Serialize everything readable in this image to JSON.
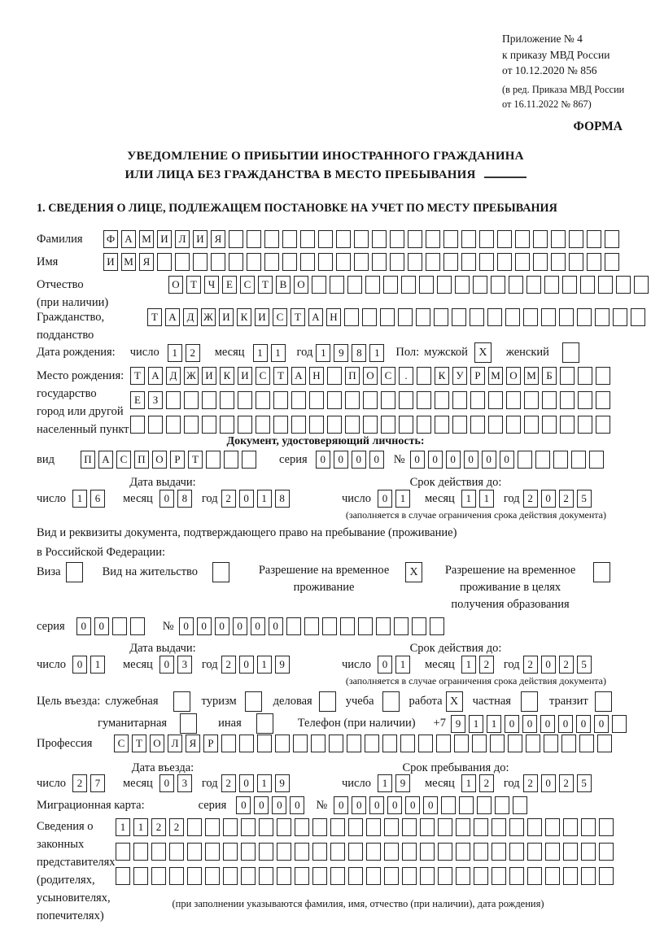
{
  "header": {
    "reference_lines": [
      "Приложение № 4",
      "к приказу МВД России",
      "от 10.12.2020 № 856"
    ],
    "amendment_lines": [
      "(в ред. Приказа МВД России",
      "от 16.11.2022 № 867)"
    ],
    "form_label": "ФОРМА"
  },
  "title": {
    "line1": "УВЕДОМЛЕНИЕ О ПРИБЫТИИ ИНОСТРАННОГО ГРАЖДАНИНА",
    "line2": "ИЛИ ЛИЦА БЕЗ ГРАЖДАНСТВА В МЕСТО ПРЕБЫВАНИЯ"
  },
  "section1_heading": "1. СВЕДЕНИЯ О ЛИЦЕ, ПОДЛЕЖАЩЕМ ПОСТАНОВКЕ НА УЧЕТ ПО МЕСТУ ПРЕБЫВАНИЯ",
  "labels": {
    "vid": "вид",
    "seriya": "серия",
    "number_sign": "№",
    "chislo": "число",
    "mesyats": "месяц",
    "god": "год",
    "data_vydachi": "Дата выдачи:",
    "srok_deystviya": "Срок действия до:",
    "validity_note": "(заполняется в случае ограничения срока действия документа)"
  },
  "surname": {
    "label": "Фамилия",
    "cells": {
      "chars": "ФАМИЛИЯ",
      "count": 29
    }
  },
  "name": {
    "label": "Имя",
    "cells": {
      "chars": "ИМЯ",
      "count": 29
    }
  },
  "patronymic": {
    "label": "Отчество",
    "label2": "(при наличии)",
    "cells": {
      "chars": "ОТЧЕСТВО",
      "count": 27
    }
  },
  "citizenship": {
    "label": "Гражданство,",
    "label2": "подданство",
    "cells": {
      "chars": "ТАДЖИКИСТАН",
      "count": 28
    }
  },
  "birth_date": {
    "label": "Дата рождения:",
    "day": {
      "chars": "12",
      "count": 2
    },
    "month": {
      "chars": "11",
      "count": 2
    },
    "year": {
      "chars": "1981",
      "count": 4
    },
    "sex_label": "Пол:",
    "male_label": "мужской",
    "male_box": {
      "chars": "X",
      "count": 1
    },
    "female_label": "женский",
    "female_box": {
      "chars": "",
      "count": 1
    }
  },
  "birth_place": {
    "label_lines": [
      "Место рождения:",
      "государство",
      "город или другой",
      "населенный пункт"
    ],
    "row1": {
      "chars": "ТАДЖИКИСТАН ПОС. КУРМОМБ",
      "count": 27
    },
    "row2": {
      "chars": "ЕЗ",
      "count": 27
    },
    "row3": {
      "chars": "",
      "count": 27
    }
  },
  "identity_doc": {
    "heading": "Документ, удостоверяющий личность:",
    "vid_cells": {
      "chars": "ПАСПОРТ",
      "count": 10
    },
    "seriya_cells": {
      "chars": "0000",
      "count": 4
    },
    "number_cells": {
      "chars": "000000",
      "count": 11
    },
    "issue": {
      "day": {
        "chars": "16",
        "count": 2
      },
      "month": {
        "chars": "08",
        "count": 2
      },
      "year": {
        "chars": "2018",
        "count": 4
      }
    },
    "valid": {
      "day": {
        "chars": "01",
        "count": 2
      },
      "month": {
        "chars": "11",
        "count": 2
      },
      "year": {
        "chars": "2025",
        "count": 4
      }
    }
  },
  "residence_doc": {
    "line1": "Вид и реквизиты документа, подтверждающего право на пребывание (проживание)",
    "line2": "в Российской Федерации:",
    "options": [
      {
        "label": "Виза",
        "box": {
          "chars": "",
          "count": 1
        }
      },
      {
        "label": "Вид на жительство",
        "box": {
          "chars": "",
          "count": 1
        }
      },
      {
        "lines": [
          "Разрешение на временное",
          "проживание"
        ],
        "box": {
          "chars": "X",
          "count": 1
        }
      },
      {
        "lines": [
          "Разрешение на временное",
          "проживание в целях",
          "получения образования"
        ],
        "box": {
          "chars": "",
          "count": 1
        }
      }
    ],
    "seriya_cells": {
      "chars": "00",
      "count": 4
    },
    "number_cells": {
      "chars": "000000",
      "count": 15
    },
    "issue": {
      "day": {
        "chars": "01",
        "count": 2
      },
      "month": {
        "chars": "03",
        "count": 2
      },
      "year": {
        "chars": "2019",
        "count": 4
      }
    },
    "valid": {
      "day": {
        "chars": "01",
        "count": 2
      },
      "month": {
        "chars": "12",
        "count": 2
      },
      "year": {
        "chars": "2025",
        "count": 4
      }
    }
  },
  "visit_purpose": {
    "label": "Цель въезда:",
    "options": [
      {
        "label": "служебная",
        "box": {
          "chars": "",
          "count": 1
        }
      },
      {
        "label": "туризм",
        "box": {
          "chars": "",
          "count": 1
        }
      },
      {
        "label": "деловая",
        "box": {
          "chars": "",
          "count": 1
        }
      },
      {
        "label": "учеба",
        "box": {
          "chars": "",
          "count": 1
        }
      },
      {
        "label": "работа",
        "box": {
          "chars": "X",
          "count": 1
        }
      },
      {
        "label": "частная",
        "box": {
          "chars": "",
          "count": 1
        }
      },
      {
        "label": "транзит",
        "box": {
          "chars": "",
          "count": 1
        }
      },
      {
        "label": "гуманитарная",
        "box": {
          "chars": "",
          "count": 1
        }
      },
      {
        "label": "иная",
        "box": {
          "chars": "",
          "count": 1
        }
      }
    ]
  },
  "phone": {
    "label": "Телефон (при наличии)",
    "prefix": "+7",
    "cells": {
      "chars": "911000000",
      "count": 10
    }
  },
  "profession": {
    "label": "Профессия",
    "cells": {
      "chars": "СТОЛЯР",
      "count": 28
    }
  },
  "entry": {
    "date_label": "Дата въезда:",
    "stay_label": "Срок пребывания до:",
    "date": {
      "day": {
        "chars": "27",
        "count": 2
      },
      "month": {
        "chars": "03",
        "count": 2
      },
      "year": {
        "chars": "2019",
        "count": 4
      }
    },
    "until": {
      "day": {
        "chars": "19",
        "count": 2
      },
      "month": {
        "chars": "12",
        "count": 2
      },
      "year": {
        "chars": "2025",
        "count": 4
      }
    }
  },
  "migration_card": {
    "label": "Миграционная карта:",
    "seriya_cells": {
      "chars": "0000",
      "count": 4
    },
    "number_cells": {
      "chars": "000000",
      "count": 11
    }
  },
  "representatives": {
    "label_lines": [
      "Сведения о",
      "законных",
      "представителях",
      "(родителях,",
      "усыновителях,",
      "попечителях)"
    ],
    "rows": [
      {
        "chars": "1122",
        "count": 28
      },
      {
        "chars": "",
        "count": 28
      },
      {
        "chars": "",
        "count": 28
      }
    ],
    "note": "(при заполнении указываются фамилия, имя, отчество (при наличии), дата рождения)"
  }
}
